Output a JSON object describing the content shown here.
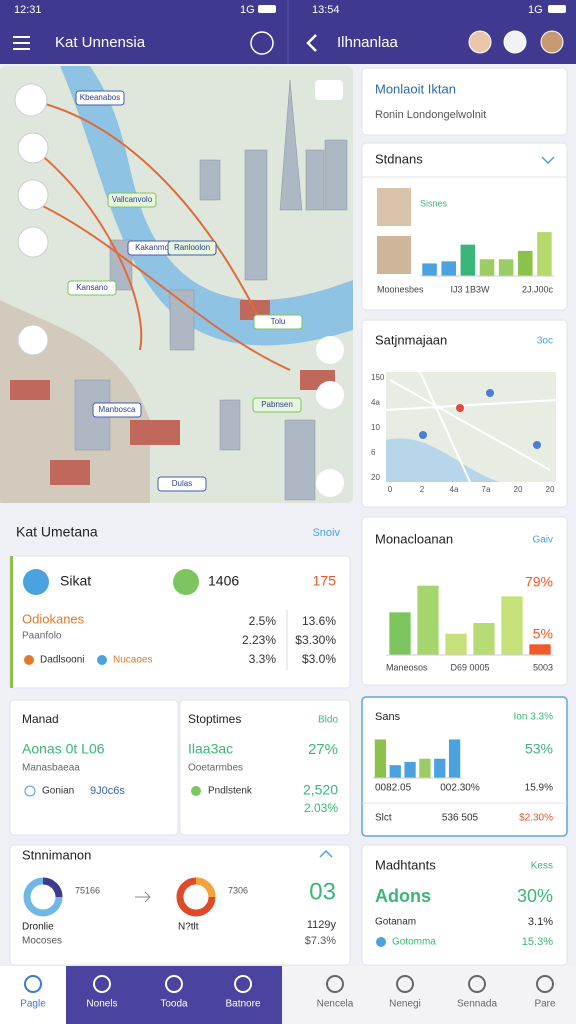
{
  "status_left": {
    "time": "12:31",
    "signal": "1G"
  },
  "status_right": {
    "time": "13:54",
    "signal": "1G"
  },
  "header_left": {
    "title": "Kat Unnensia"
  },
  "header_right": {
    "title": "Ilhnanlaa"
  },
  "map_labels": [
    "Kbeanabos",
    "Vallcanvolo",
    "Kakanmo",
    "Kansano",
    "Ranloolon",
    "Tolu",
    "Manbosca",
    "Pabnsen",
    "Dulas"
  ],
  "section": {
    "title": "Kat Umetana",
    "link": "Snoiv"
  },
  "summary_card": {
    "left_label": "Sikat",
    "mid_value": "1406",
    "right_value": "175",
    "subtitle": "Odiokanes",
    "caption": "Paanfolo",
    "rows": [
      [
        "2.5%",
        "13.6%"
      ],
      [
        "2.23%",
        "$3.30%"
      ],
      [
        "3.3%",
        "$3.0%"
      ]
    ],
    "legend": [
      "Dadlsooni",
      "Nucaoes"
    ]
  },
  "card_manad": {
    "title": "Manad",
    "value": "Aonas 0t L06",
    "caption": "Manasbaeaa",
    "item": "Gonian",
    "item_value": "9J0c6s"
  },
  "card_stop": {
    "title": "Stoptimes",
    "link": "Bldo",
    "value": "Ilaa3ac",
    "percent": "27%",
    "caption": "Ooetarmbes",
    "item": "Pndlstenk",
    "amount": "2,520",
    "change": "2.03%"
  },
  "card_stn": {
    "title": "Stnnimanon",
    "left_caption": "Dronlie",
    "left_sub": "Mocoses",
    "left_value": "75166",
    "right_caption": "N?tlt",
    "right_value": "7306",
    "big": "03",
    "line1": "1129y",
    "line2": "$7.3%"
  },
  "right_cards": {
    "top": {
      "title": "Monlaoit Iktan",
      "subtitle": "Ronin Londongelwolnit"
    },
    "students": {
      "title": "Stdnans",
      "tag": "Sisnes",
      "labels": [
        "Moonesbes",
        "IJ3 1B3W",
        "2J.J00c"
      ],
      "values": [
        6,
        7,
        15,
        8,
        8,
        12,
        21
      ],
      "colors": [
        "#4aa3df",
        "#4aa3df",
        "#3bb67a",
        "#9ccc65",
        "#9ccc65",
        "#8bc34a",
        "#b5d96a"
      ],
      "ylim": [
        0,
        22
      ]
    },
    "map": {
      "title": "Satjnmajaan",
      "link": "3oc",
      "y_labels": [
        "150",
        "4a",
        "10",
        "6",
        "20"
      ],
      "x_labels": [
        "0",
        "2",
        "4a",
        "7a",
        "20",
        "20"
      ]
    },
    "mon": {
      "title": "Monacloanan",
      "link": "Gaiv",
      "big": "79%",
      "small": "5%",
      "labels": [
        "Maneosos",
        "D69 0005",
        "5003"
      ],
      "values": [
        8,
        13,
        4,
        6,
        11,
        2
      ],
      "colors": [
        "#7cc55f",
        "#a5d66d",
        "#c6e07a",
        "#b8dc75",
        "#c6e07a",
        "#f05a28"
      ],
      "ylim": [
        0,
        15
      ]
    },
    "sans": {
      "title": "Sans",
      "link": "Ion 3.3%",
      "big": "53%",
      "values": [
        12,
        4,
        5,
        6,
        6,
        12
      ],
      "colors": [
        "#8bc34a",
        "#4aa3df",
        "#4aa3df",
        "#9ccc65",
        "#4aa3df",
        "#4aa3df"
      ],
      "ylim": [
        0,
        14
      ],
      "row1": [
        "0082.05",
        "002.30%",
        "15.9%"
      ],
      "row2": [
        "Slct",
        "536 505",
        "$2.30%"
      ]
    },
    "mad": {
      "title": "Madhtants",
      "link": "Kess",
      "big": "Adons",
      "big_value": "30%",
      "rows": [
        [
          "Gotanam",
          "3.1%"
        ],
        [
          "Gotomma",
          "15.3%"
        ]
      ]
    }
  },
  "bottom_nav": [
    "Pagle",
    "Nonels",
    "Tooda",
    "Batnore",
    "Nencela",
    "Nenegi",
    "Sennada",
    "Pare"
  ]
}
